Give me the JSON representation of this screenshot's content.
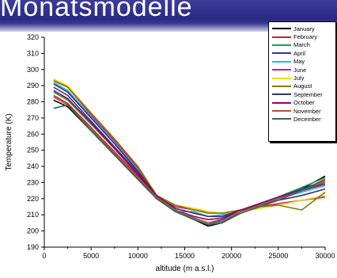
{
  "header": {
    "title": "Monatsmodelle"
  },
  "chart_data": {
    "type": "line",
    "title": "",
    "xlabel": "altitude (m a.s.l.)",
    "ylabel": "Temperature (K)",
    "xlim": [
      0,
      30000
    ],
    "ylim": [
      190,
      320
    ],
    "x_ticks": [
      0,
      5000,
      10000,
      15000,
      20000,
      25000,
      30000
    ],
    "y_ticks": [
      190,
      200,
      210,
      220,
      230,
      240,
      250,
      260,
      270,
      280,
      290,
      300,
      310,
      320
    ],
    "x_tick_labels": [
      "0",
      "5000",
      "10000",
      "15000",
      "20000",
      "25000",
      "30000"
    ],
    "y_tick_labels": [
      "190",
      "200",
      "210",
      "220",
      "230",
      "240",
      "250",
      "260",
      "270",
      "280",
      "290",
      "300",
      "310",
      "320"
    ],
    "grid": false,
    "legend_position": "top-right",
    "series": [
      {
        "name": "January",
        "color": "#000000",
        "x": [
          1000,
          2500,
          5000,
          7500,
          10000,
          12000,
          14000,
          16000,
          17500,
          19000,
          21000,
          23000,
          25000,
          27500,
          30000
        ],
        "y": [
          281,
          277,
          262,
          247,
          232,
          220,
          212,
          207,
          203,
          205,
          212,
          216,
          220,
          226,
          234
        ]
      },
      {
        "name": "February",
        "color": "#cc2222",
        "x": [
          1000,
          2500,
          5000,
          7500,
          10000,
          12000,
          14000,
          16000,
          17500,
          19000,
          21000,
          23000,
          25000,
          27500,
          30000
        ],
        "y": [
          284,
          279,
          264,
          249,
          234,
          221,
          213,
          207,
          204,
          206,
          212,
          216,
          220,
          225,
          232
        ]
      },
      {
        "name": "March",
        "color": "#11aa44",
        "x": [
          1000,
          2500,
          5000,
          7500,
          10000,
          12000,
          14000,
          16000,
          17500,
          19000,
          21000,
          23000,
          25000,
          27500,
          30000
        ],
        "y": [
          286,
          281,
          266,
          251,
          235,
          222,
          213,
          207,
          204,
          206,
          212,
          217,
          221,
          227,
          233
        ]
      },
      {
        "name": "April",
        "color": "#333399",
        "x": [
          1000,
          2500,
          5000,
          7500,
          10000,
          12000,
          14000,
          16000,
          17500,
          19000,
          21000,
          23000,
          25000,
          27500,
          30000
        ],
        "y": [
          289,
          284,
          268,
          252,
          236,
          222,
          213,
          208,
          205,
          207,
          213,
          217,
          221,
          226,
          231
        ]
      },
      {
        "name": "May",
        "color": "#22bbdd",
        "x": [
          1000,
          2500,
          5000,
          7500,
          10000,
          12000,
          14000,
          16000,
          17500,
          19000,
          21000,
          23000,
          25000,
          27500,
          30000
        ],
        "y": [
          292,
          287,
          271,
          255,
          238,
          222,
          212,
          212,
          209,
          210,
          213,
          217,
          220,
          224,
          228
        ]
      },
      {
        "name": "June",
        "color": "#dd1188",
        "x": [
          1000,
          2500,
          5000,
          7500,
          10000,
          12000,
          14000,
          16000,
          17500,
          19000,
          21000,
          23000,
          25000,
          27500,
          30000
        ],
        "y": [
          294,
          289,
          272,
          256,
          239,
          221,
          215,
          213,
          212,
          211,
          213,
          215,
          217,
          219,
          221
        ]
      },
      {
        "name": "July",
        "color": "#eedd00",
        "x": [
          1000,
          2500,
          5000,
          7500,
          10000,
          12000,
          14000,
          16000,
          17500,
          19000,
          21000,
          23000,
          25000,
          27500,
          30000
        ],
        "y": [
          294,
          290,
          273,
          257,
          240,
          222,
          216,
          214,
          212,
          211,
          212,
          214,
          216,
          219,
          222
        ]
      },
      {
        "name": "August",
        "color": "#887700",
        "x": [
          1000,
          2500,
          5000,
          7500,
          10000,
          12000,
          14000,
          16000,
          17500,
          19000,
          21000,
          23000,
          25000,
          27500,
          30000
        ],
        "y": [
          293,
          289,
          273,
          257,
          240,
          222,
          216,
          213,
          211,
          211,
          213,
          215,
          216,
          213,
          224
        ]
      },
      {
        "name": "September",
        "color": "#333366",
        "x": [
          1000,
          2500,
          5000,
          7500,
          10000,
          12000,
          14000,
          16000,
          17500,
          19000,
          21000,
          23000,
          25000,
          27500,
          30000
        ],
        "y": [
          291,
          286,
          270,
          254,
          237,
          222,
          214,
          211,
          209,
          209,
          213,
          216,
          219,
          222,
          226
        ]
      },
      {
        "name": "October",
        "color": "#990066",
        "x": [
          1000,
          2500,
          5000,
          7500,
          10000,
          12000,
          14000,
          16000,
          17500,
          19000,
          21000,
          23000,
          25000,
          27500,
          30000
        ],
        "y": [
          287,
          282,
          267,
          251,
          235,
          222,
          213,
          209,
          207,
          208,
          213,
          217,
          221,
          225,
          229
        ]
      },
      {
        "name": "November",
        "color": "#aa5544",
        "x": [
          1000,
          2500,
          5000,
          7500,
          10000,
          12000,
          14000,
          16000,
          17500,
          19000,
          21000,
          23000,
          25000,
          27500,
          30000
        ],
        "y": [
          283,
          278,
          263,
          248,
          233,
          221,
          213,
          208,
          205,
          206,
          212,
          216,
          220,
          225,
          231
        ]
      },
      {
        "name": "December",
        "color": "#336655",
        "x": [
          1000,
          2500,
          5000,
          7500,
          10000,
          12000,
          14000,
          16000,
          17500,
          19000,
          21000,
          23000,
          25000,
          27500,
          30000
        ],
        "y": [
          276,
          278,
          262,
          247,
          232,
          220,
          212,
          207,
          204,
          205,
          211,
          215,
          219,
          225,
          230
        ]
      }
    ]
  }
}
